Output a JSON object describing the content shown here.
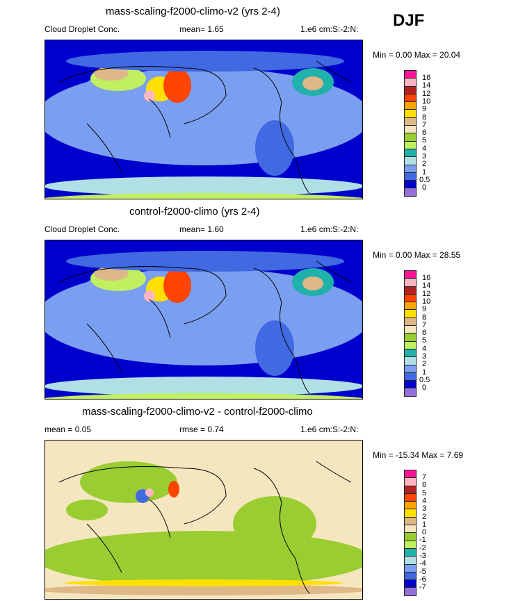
{
  "season": "DJF",
  "panels": [
    {
      "title": "mass-scaling-f2000-climo-v2 (yrs 2-4)",
      "variable": "Cloud Droplet Conc.",
      "stat1": "mean=   1.65",
      "stat2": "",
      "units": "1.e6 cm:S:-2:N:",
      "minmax": "Min =   0.00 Max =  20.04",
      "levels": [
        "16",
        "14",
        "12",
        "10",
        "9",
        "8",
        "7",
        "6",
        "5",
        "4",
        "3",
        "2",
        "1",
        "0.5",
        "0"
      ],
      "base": "#0000CD"
    },
    {
      "title": "control-f2000-climo (yrs 2-4)",
      "variable": "Cloud Droplet Conc.",
      "stat1": "mean=   1.60",
      "stat2": "",
      "units": "1.e6 cm:S:-2:N:",
      "minmax": "Min =   0.00 Max =  28.55",
      "levels": [
        "16",
        "14",
        "12",
        "10",
        "9",
        "8",
        "7",
        "6",
        "5",
        "4",
        "3",
        "2",
        "1",
        "0.5",
        "0"
      ],
      "base": "#0000CD"
    },
    {
      "title": "mass-scaling-f2000-climo-v2 - control-f2000-climo",
      "variable": "",
      "stat1": "mean =   0.05",
      "stat2": "rmse =   0.74",
      "units": "1.e6 cm:S:-2:N:",
      "minmax": "Min = -15.34 Max =   7.69",
      "levels": [
        "7",
        "6",
        "5",
        "4",
        "3",
        "2",
        "1",
        "0",
        "-1",
        "-2",
        "-3",
        "-4",
        "-5",
        "-6",
        "-7"
      ],
      "base": "#F5E6C0"
    }
  ],
  "colors": [
    "#FF1493",
    "#FFB6C1",
    "#B22222",
    "#FF4500",
    "#FFA500",
    "#FFE000",
    "#DEB887",
    "#F5E6C0",
    "#9ACD32",
    "#C0F060",
    "#20B2AA",
    "#B0E0E6",
    "#7B9FF0",
    "#4169E1",
    "#0000CD",
    "#9370DB"
  ]
}
